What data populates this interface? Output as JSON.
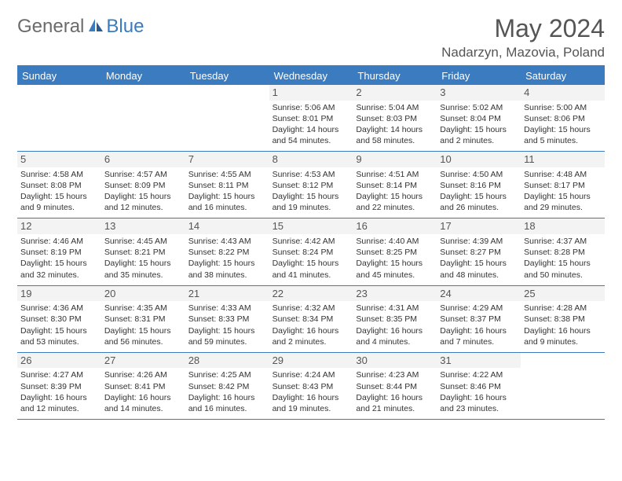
{
  "logo": {
    "text1": "General",
    "text2": "Blue"
  },
  "title": "May 2024",
  "location": "Nadarzyn, Mazovia, Poland",
  "header_bg": "#3b7bbf",
  "weekdays": [
    "Sunday",
    "Monday",
    "Tuesday",
    "Wednesday",
    "Thursday",
    "Friday",
    "Saturday"
  ],
  "weeks": [
    [
      {
        "n": "",
        "sr": "",
        "ss": "",
        "dl": ""
      },
      {
        "n": "",
        "sr": "",
        "ss": "",
        "dl": ""
      },
      {
        "n": "",
        "sr": "",
        "ss": "",
        "dl": ""
      },
      {
        "n": "1",
        "sr": "5:06 AM",
        "ss": "8:01 PM",
        "dl": "14 hours and 54 minutes."
      },
      {
        "n": "2",
        "sr": "5:04 AM",
        "ss": "8:03 PM",
        "dl": "14 hours and 58 minutes."
      },
      {
        "n": "3",
        "sr": "5:02 AM",
        "ss": "8:04 PM",
        "dl": "15 hours and 2 minutes."
      },
      {
        "n": "4",
        "sr": "5:00 AM",
        "ss": "8:06 PM",
        "dl": "15 hours and 5 minutes."
      }
    ],
    [
      {
        "n": "5",
        "sr": "4:58 AM",
        "ss": "8:08 PM",
        "dl": "15 hours and 9 minutes."
      },
      {
        "n": "6",
        "sr": "4:57 AM",
        "ss": "8:09 PM",
        "dl": "15 hours and 12 minutes."
      },
      {
        "n": "7",
        "sr": "4:55 AM",
        "ss": "8:11 PM",
        "dl": "15 hours and 16 minutes."
      },
      {
        "n": "8",
        "sr": "4:53 AM",
        "ss": "8:12 PM",
        "dl": "15 hours and 19 minutes."
      },
      {
        "n": "9",
        "sr": "4:51 AM",
        "ss": "8:14 PM",
        "dl": "15 hours and 22 minutes."
      },
      {
        "n": "10",
        "sr": "4:50 AM",
        "ss": "8:16 PM",
        "dl": "15 hours and 26 minutes."
      },
      {
        "n": "11",
        "sr": "4:48 AM",
        "ss": "8:17 PM",
        "dl": "15 hours and 29 minutes."
      }
    ],
    [
      {
        "n": "12",
        "sr": "4:46 AM",
        "ss": "8:19 PM",
        "dl": "15 hours and 32 minutes."
      },
      {
        "n": "13",
        "sr": "4:45 AM",
        "ss": "8:21 PM",
        "dl": "15 hours and 35 minutes."
      },
      {
        "n": "14",
        "sr": "4:43 AM",
        "ss": "8:22 PM",
        "dl": "15 hours and 38 minutes."
      },
      {
        "n": "15",
        "sr": "4:42 AM",
        "ss": "8:24 PM",
        "dl": "15 hours and 41 minutes."
      },
      {
        "n": "16",
        "sr": "4:40 AM",
        "ss": "8:25 PM",
        "dl": "15 hours and 45 minutes."
      },
      {
        "n": "17",
        "sr": "4:39 AM",
        "ss": "8:27 PM",
        "dl": "15 hours and 48 minutes."
      },
      {
        "n": "18",
        "sr": "4:37 AM",
        "ss": "8:28 PM",
        "dl": "15 hours and 50 minutes."
      }
    ],
    [
      {
        "n": "19",
        "sr": "4:36 AM",
        "ss": "8:30 PM",
        "dl": "15 hours and 53 minutes."
      },
      {
        "n": "20",
        "sr": "4:35 AM",
        "ss": "8:31 PM",
        "dl": "15 hours and 56 minutes."
      },
      {
        "n": "21",
        "sr": "4:33 AM",
        "ss": "8:33 PM",
        "dl": "15 hours and 59 minutes."
      },
      {
        "n": "22",
        "sr": "4:32 AM",
        "ss": "8:34 PM",
        "dl": "16 hours and 2 minutes."
      },
      {
        "n": "23",
        "sr": "4:31 AM",
        "ss": "8:35 PM",
        "dl": "16 hours and 4 minutes."
      },
      {
        "n": "24",
        "sr": "4:29 AM",
        "ss": "8:37 PM",
        "dl": "16 hours and 7 minutes."
      },
      {
        "n": "25",
        "sr": "4:28 AM",
        "ss": "8:38 PM",
        "dl": "16 hours and 9 minutes."
      }
    ],
    [
      {
        "n": "26",
        "sr": "4:27 AM",
        "ss": "8:39 PM",
        "dl": "16 hours and 12 minutes."
      },
      {
        "n": "27",
        "sr": "4:26 AM",
        "ss": "8:41 PM",
        "dl": "16 hours and 14 minutes."
      },
      {
        "n": "28",
        "sr": "4:25 AM",
        "ss": "8:42 PM",
        "dl": "16 hours and 16 minutes."
      },
      {
        "n": "29",
        "sr": "4:24 AM",
        "ss": "8:43 PM",
        "dl": "16 hours and 19 minutes."
      },
      {
        "n": "30",
        "sr": "4:23 AM",
        "ss": "8:44 PM",
        "dl": "16 hours and 21 minutes."
      },
      {
        "n": "31",
        "sr": "4:22 AM",
        "ss": "8:46 PM",
        "dl": "16 hours and 23 minutes."
      },
      {
        "n": "",
        "sr": "",
        "ss": "",
        "dl": ""
      }
    ]
  ],
  "labels": {
    "sunrise": "Sunrise: ",
    "sunset": "Sunset: ",
    "daylight": "Daylight: "
  }
}
